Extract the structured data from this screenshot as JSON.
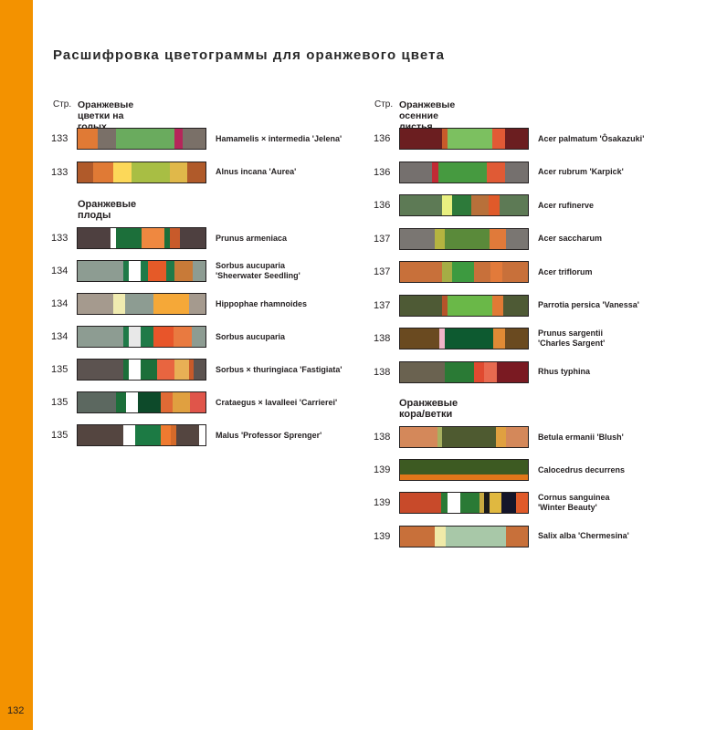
{
  "page_number": "132",
  "title": "Расшифровка цветограммы для оранжевого цвета",
  "left_column": {
    "page_label": "Стр.",
    "heading": "Оранжевые цветки на голых ветках",
    "rows_a": [
      {
        "page": "133",
        "name": "Hamamelis × intermedia 'Jelena'",
        "name2": "",
        "colors": [
          "#e07a35",
          "#7a7068",
          "#6aab5e",
          "#6aab5e",
          "#b5265a",
          "#7a7068"
        ],
        "widths": [
          18,
          16,
          22,
          30,
          8,
          20
        ]
      },
      {
        "page": "133",
        "name": "Alnus incana 'Aurea'",
        "name2": "",
        "colors": [
          "#b05a2a",
          "#e07a35",
          "#fcd859",
          "#a8be44",
          "#e0b84a",
          "#b05a2a"
        ],
        "widths": [
          12,
          16,
          14,
          30,
          14,
          14
        ]
      }
    ],
    "subheading": "Оранжевые плоды",
    "rows_b": [
      {
        "page": "133",
        "name": "Prunus armeniaca",
        "name2": "",
        "colors": [
          "#4e4040",
          "#ffffff",
          "#1c6f3a",
          "#ef8840",
          "#1c6f3a",
          "#c85a2a",
          "#4e4040"
        ],
        "widths": [
          26,
          4,
          20,
          18,
          4,
          8,
          20
        ]
      },
      {
        "page": "134",
        "name": "Sorbus aucuparia",
        "name2": "'Sheerwater Seedling'",
        "colors": [
          "#8d9c92",
          "#1f7a48",
          "#ffffff",
          "#1f7a48",
          "#e55a28",
          "#1f7a48",
          "#c87a38",
          "#8d9c92"
        ],
        "widths": [
          36,
          4,
          9,
          6,
          14,
          7,
          14,
          10
        ]
      },
      {
        "page": "134",
        "name": "Hippophae rhamnoides",
        "name2": "",
        "colors": [
          "#a59a8e",
          "#f0ebb0",
          "#8d9c92",
          "#f5a838",
          "#a59a8e"
        ],
        "widths": [
          28,
          9,
          22,
          28,
          13
        ]
      },
      {
        "page": "134",
        "name": "Sorbus aucuparia",
        "name2": "",
        "colors": [
          "#8d9c92",
          "#1f7a48",
          "#e8e8e8",
          "#1f7a48",
          "#e8552a",
          "#e97a40",
          "#8d9c92"
        ],
        "widths": [
          36,
          4,
          9,
          10,
          16,
          14,
          11
        ]
      },
      {
        "page": "135",
        "name": "Sorbus × thuringiaca 'Fastigiata'",
        "name2": "",
        "colors": [
          "#5c5350",
          "#1c6f3a",
          "#ffffff",
          "#1c6f3a",
          "#e86540",
          "#e8b055",
          "#c85a2a",
          "#5c5350"
        ],
        "widths": [
          36,
          4,
          9,
          13,
          14,
          11,
          4,
          9
        ]
      },
      {
        "page": "135",
        "name": "Crataegus × lavalleei 'Carrierei'",
        "name2": "",
        "colors": [
          "#5c6860",
          "#1c6f3a",
          "#ffffff",
          "#0d4a2a",
          "#e06a35",
          "#e0a040",
          "#e0554a"
        ],
        "widths": [
          30,
          8,
          9,
          18,
          9,
          14,
          12
        ]
      },
      {
        "page": "135",
        "name": "Malus 'Professor Sprenger'",
        "name2": "",
        "colors": [
          "#544540",
          "#ffffff",
          "#1c7a44",
          "#ef7a30",
          "#d46a2a",
          "#544540"
        ],
        "widths": [
          36,
          9,
          20,
          8,
          4,
          18
        ]
      }
    ]
  },
  "right_column": {
    "page_label": "Стр.",
    "heading": "Оранжевые осенние листья",
    "rows_a": [
      {
        "page": "136",
        "name": "Acer palmatum 'Ôsakazuki'",
        "name2": "",
        "colors": [
          "#6b1e20",
          "#c85a2a",
          "#7cc060",
          "#e25a35",
          "#6b1e20"
        ],
        "widths": [
          33,
          4,
          35,
          10,
          18
        ]
      },
      {
        "page": "136",
        "name": "Acer rubrum 'Karpick'",
        "name2": "",
        "colors": [
          "#75706e",
          "#c22a35",
          "#469a40",
          "#e05a35",
          "#75706e"
        ],
        "widths": [
          25,
          5,
          38,
          14,
          18
        ]
      },
      {
        "page": "136",
        "name": "Acer rufinerve",
        "name2": "",
        "colors": [
          "#5d7a55",
          "#e8f080",
          "#2d7a3a",
          "#b8703a",
          "#e05a2a",
          "#5d7a55"
        ],
        "widths": [
          33,
          8,
          15,
          13,
          9,
          22
        ]
      },
      {
        "page": "137",
        "name": "Acer saccharum",
        "name2": "",
        "colors": [
          "#7a7672",
          "#b5b440",
          "#5a8a3a",
          "#e07a3a",
          "#7a7672"
        ],
        "widths": [
          27,
          8,
          35,
          13,
          17
        ]
      },
      {
        "page": "137",
        "name": "Acer triflorum",
        "name2": "",
        "colors": [
          "#c8703a",
          "#a5ad45",
          "#3d9a40",
          "#c8703a",
          "#e27a3a",
          "#c8703a"
        ],
        "widths": [
          33,
          8,
          17,
          13,
          9,
          20
        ]
      },
      {
        "page": "137",
        "name": "Parrotia persica 'Vanessa'",
        "name2": "",
        "colors": [
          "#4e5a35",
          "#b5532a",
          "#6ab848",
          "#e07a35",
          "#4e5a35"
        ],
        "widths": [
          33,
          4,
          35,
          9,
          19
        ]
      },
      {
        "page": "138",
        "name": "Prunus sargentii",
        "name2": "'Charles Sargent'",
        "colors": [
          "#6a4a20",
          "#f0b4c8",
          "#0d5a30",
          "#0d5a30",
          "#e08a35",
          "#6a4a20"
        ],
        "widths": [
          31,
          4,
          7,
          31,
          9,
          18
        ]
      },
      {
        "page": "138",
        "name": "Rhus typhina",
        "name2": "",
        "colors": [
          "#6a6250",
          "#2a7a35",
          "#e04a30",
          "#e86a50",
          "#7a1a22"
        ],
        "widths": [
          35,
          23,
          8,
          10,
          24
        ]
      }
    ],
    "subheading": "Оранжевые кора/ветки",
    "rows_b": [
      {
        "page": "138",
        "name": "Betula ermanii 'Blush'",
        "name2": "",
        "colors": [
          "#d4885a",
          "#a8b060",
          "#4e5a30",
          "#e0a040",
          "#d4885a"
        ],
        "widths": [
          29,
          4,
          42,
          8,
          17
        ]
      },
      {
        "page": "139",
        "name": "Calocedrus decurrens",
        "name2": "",
        "colors": [
          "#3d5a22",
          "#e0761a"
        ],
        "widths": [
          72,
          28
        ],
        "stack": true
      },
      {
        "page": "139",
        "name": "Cornus sanguinea",
        "name2": "'Winter Beauty'",
        "colors": [
          "#c84a2a",
          "#2a7a35",
          "#ffffff",
          "#2a7a35",
          "#c8a840",
          "#1a1a1a",
          "#e0b840",
          "#15152a",
          "#e05a2a"
        ],
        "widths": [
          32,
          5,
          10,
          15,
          4,
          4,
          9,
          12,
          9
        ]
      },
      {
        "page": "139",
        "name": "Salix alba 'Chermesina'",
        "name2": "",
        "colors": [
          "#c8703a",
          "#f0eaa8",
          "#a8c8a8",
          "#c8703a"
        ],
        "widths": [
          27,
          9,
          47,
          17
        ]
      }
    ]
  }
}
